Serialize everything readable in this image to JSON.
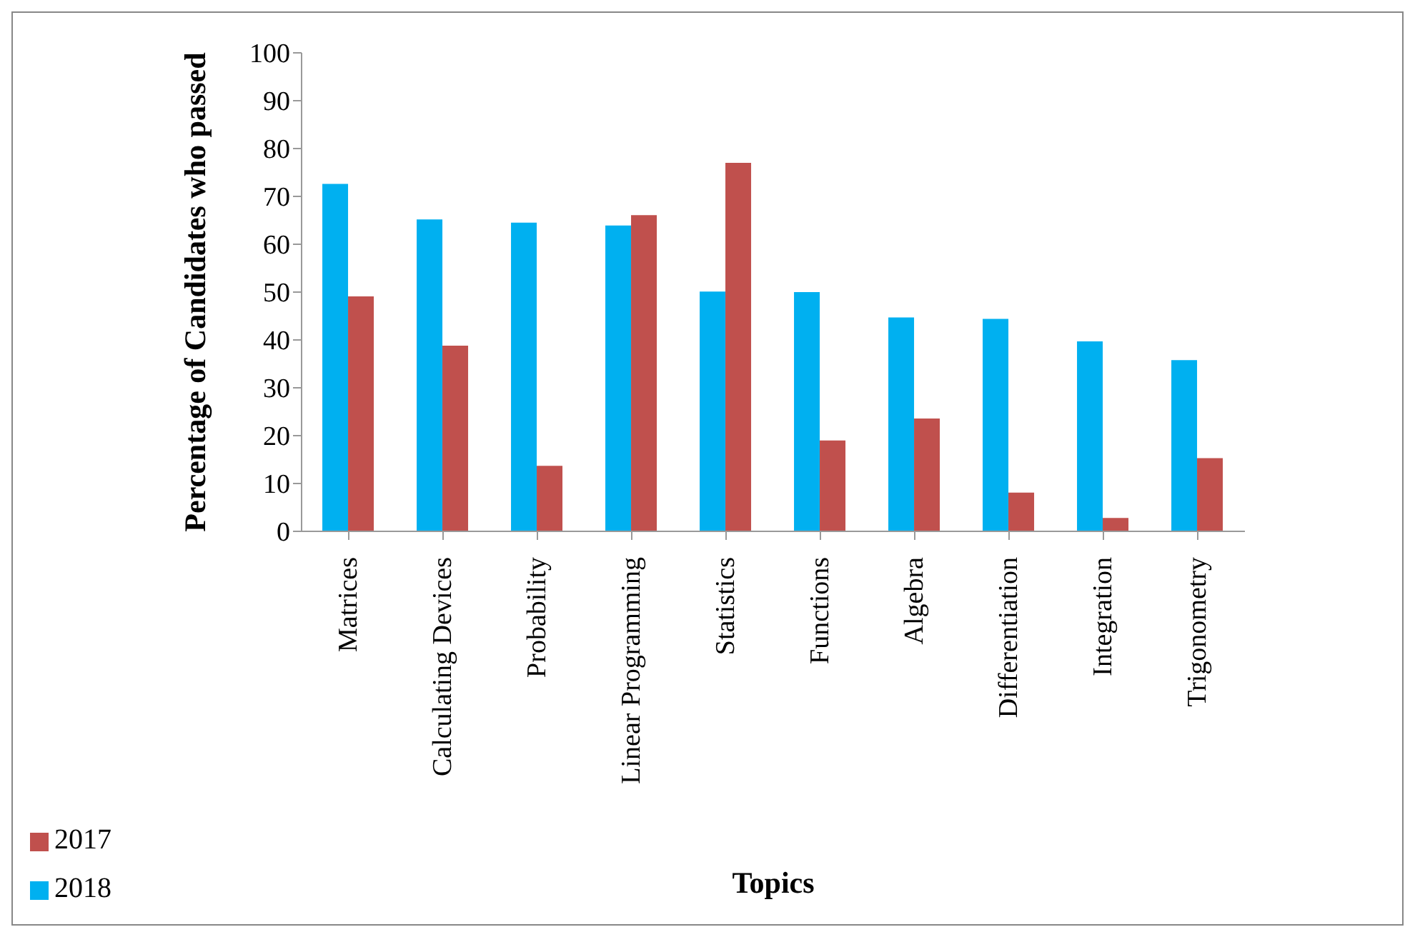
{
  "chart_data": {
    "type": "bar",
    "xlabel": "Topics",
    "ylabel": "Percentage of Candidates who passed",
    "categories": [
      "Matrices",
      "Calculating Devices",
      "Probability",
      "Linear Programming",
      "Statistics",
      "Functions",
      "Algebra",
      "Differentiation",
      "Integration",
      "Trigonometry"
    ],
    "series": [
      {
        "name": "2018",
        "color": "#00b0f0",
        "values": [
          72.6,
          65.2,
          64.5,
          63.9,
          50.1,
          50,
          44.7,
          44.4,
          39.7,
          35.8
        ]
      },
      {
        "name": "2017",
        "color": "#c0504d",
        "values": [
          49.1,
          38.8,
          13.7,
          66.1,
          77,
          19,
          23.6,
          8.1,
          2.8,
          15.3
        ]
      }
    ],
    "ylim": [
      0,
      100
    ],
    "yticks": [
      0,
      10,
      20,
      30,
      40,
      50,
      60,
      70,
      80,
      90,
      100
    ],
    "grid": false,
    "legend": "bottom left"
  }
}
